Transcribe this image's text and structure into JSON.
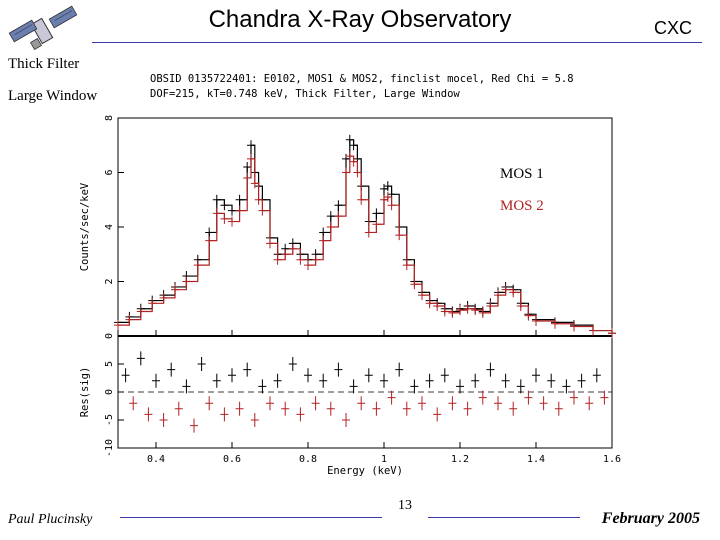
{
  "slide": {
    "title": "Chandra X-Ray Observatory",
    "brand": "CXC",
    "side_labels": [
      "Thick Filter",
      "Large Window"
    ],
    "author": "Paul Plucinsky",
    "page_number": "13",
    "date": "February 2005"
  },
  "colors": {
    "accent_rule": "#3a3aa8",
    "mos1": "#000000",
    "mos2": "#b22222"
  },
  "icons": {
    "logo": "chandra-satellite-icon"
  },
  "chart_data": {
    "type": "line",
    "title_lines": [
      "OBSID 0135722401: E0102, MOS1 & MOS2, finclist mocel, Red Chi = 5.8",
      "DOF=215, kT=0.748 keV, Thick Filter, Large Window"
    ],
    "xlabel": "Energy (keV)",
    "xlim": [
      0.3,
      1.6
    ],
    "x_ticks": [
      "0.4",
      "0.6",
      "0.8",
      "1",
      "1.2",
      "1.4",
      "1.6"
    ],
    "top_panel": {
      "ylabel": "Counts/sec/keV",
      "ylim": [
        0,
        8
      ],
      "y_ticks": [
        "0",
        "2",
        "4",
        "6",
        "8"
      ]
    },
    "bottom_panel": {
      "ylabel": "Res(sig)",
      "ylim": [
        -10,
        10
      ],
      "y_ticks": [
        "-10",
        "-5",
        "0",
        "5"
      ]
    },
    "legend": [
      "MOS 1",
      "MOS 2"
    ],
    "legend_position": "right",
    "series": [
      {
        "name": "MOS 1",
        "x": [
          0.3,
          0.33,
          0.36,
          0.39,
          0.42,
          0.45,
          0.48,
          0.51,
          0.54,
          0.56,
          0.58,
          0.6,
          0.62,
          0.64,
          0.65,
          0.66,
          0.67,
          0.68,
          0.7,
          0.72,
          0.74,
          0.76,
          0.78,
          0.8,
          0.82,
          0.84,
          0.86,
          0.88,
          0.9,
          0.91,
          0.92,
          0.93,
          0.94,
          0.96,
          0.98,
          1.0,
          1.01,
          1.02,
          1.04,
          1.06,
          1.08,
          1.1,
          1.12,
          1.14,
          1.16,
          1.18,
          1.2,
          1.22,
          1.24,
          1.26,
          1.28,
          1.3,
          1.32,
          1.34,
          1.36,
          1.38,
          1.4,
          1.45,
          1.5,
          1.55,
          1.6
        ],
        "values": [
          0.5,
          0.7,
          1.0,
          1.3,
          1.5,
          1.8,
          2.2,
          2.8,
          3.8,
          5.0,
          4.8,
          4.6,
          5.0,
          6.2,
          7.0,
          6.0,
          5.5,
          5.0,
          3.6,
          3.0,
          3.2,
          3.4,
          3.0,
          2.8,
          3.0,
          3.8,
          4.4,
          4.8,
          6.5,
          7.2,
          7.0,
          6.5,
          5.5,
          4.2,
          4.5,
          5.4,
          5.5,
          5.2,
          4.0,
          2.8,
          2.0,
          1.6,
          1.3,
          1.2,
          1.0,
          0.9,
          1.0,
          1.1,
          1.0,
          0.9,
          1.2,
          1.6,
          1.8,
          1.7,
          1.2,
          0.8,
          0.6,
          0.5,
          0.4,
          0.2,
          0.1
        ]
      },
      {
        "name": "MOS 2",
        "x": [
          0.3,
          0.33,
          0.36,
          0.39,
          0.42,
          0.45,
          0.48,
          0.51,
          0.54,
          0.56,
          0.58,
          0.6,
          0.62,
          0.64,
          0.65,
          0.66,
          0.67,
          0.68,
          0.7,
          0.72,
          0.74,
          0.76,
          0.78,
          0.8,
          0.82,
          0.84,
          0.86,
          0.88,
          0.9,
          0.91,
          0.92,
          0.93,
          0.94,
          0.96,
          0.98,
          1.0,
          1.01,
          1.02,
          1.04,
          1.06,
          1.08,
          1.1,
          1.12,
          1.14,
          1.16,
          1.18,
          1.2,
          1.22,
          1.24,
          1.26,
          1.28,
          1.3,
          1.32,
          1.34,
          1.36,
          1.38,
          1.4,
          1.45,
          1.5,
          1.55,
          1.6
        ],
        "values": [
          0.4,
          0.6,
          0.9,
          1.2,
          1.4,
          1.7,
          2.0,
          2.6,
          3.5,
          4.5,
          4.3,
          4.2,
          4.6,
          5.8,
          6.5,
          5.6,
          5.0,
          4.6,
          3.4,
          2.8,
          3.0,
          3.2,
          2.8,
          2.6,
          2.8,
          3.5,
          4.0,
          4.4,
          6.0,
          6.6,
          6.4,
          6.0,
          5.0,
          3.8,
          4.1,
          5.0,
          5.1,
          4.8,
          3.7,
          2.6,
          1.9,
          1.5,
          1.2,
          1.1,
          0.9,
          0.85,
          0.95,
          1.0,
          0.95,
          0.85,
          1.1,
          1.5,
          1.7,
          1.6,
          1.1,
          0.75,
          0.55,
          0.45,
          0.35,
          0.2,
          0.1
        ]
      }
    ],
    "residuals": {
      "MOS 1": {
        "x": [
          0.32,
          0.36,
          0.4,
          0.44,
          0.48,
          0.52,
          0.56,
          0.6,
          0.64,
          0.68,
          0.72,
          0.76,
          0.8,
          0.84,
          0.88,
          0.92,
          0.96,
          1.0,
          1.04,
          1.08,
          1.12,
          1.16,
          1.2,
          1.24,
          1.28,
          1.32,
          1.36,
          1.4,
          1.44,
          1.48,
          1.52,
          1.56
        ],
        "values": [
          3,
          6,
          2,
          4,
          1,
          5,
          2,
          3,
          4,
          1,
          2,
          5,
          3,
          2,
          4,
          1,
          3,
          2,
          4,
          1,
          2,
          3,
          1,
          2,
          4,
          2,
          1,
          3,
          2,
          1,
          2,
          3
        ]
      },
      "MOS 2": {
        "x": [
          0.34,
          0.38,
          0.42,
          0.46,
          0.5,
          0.54,
          0.58,
          0.62,
          0.66,
          0.7,
          0.74,
          0.78,
          0.82,
          0.86,
          0.9,
          0.94,
          0.98,
          1.02,
          1.06,
          1.1,
          1.14,
          1.18,
          1.22,
          1.26,
          1.3,
          1.34,
          1.38,
          1.42,
          1.46,
          1.5,
          1.54,
          1.58
        ],
        "values": [
          -2,
          -4,
          -5,
          -3,
          -6,
          -2,
          -4,
          -3,
          -5,
          -2,
          -3,
          -4,
          -2,
          -3,
          -5,
          -2,
          -3,
          -1,
          -3,
          -2,
          -4,
          -2,
          -3,
          -1,
          -2,
          -3,
          -1,
          -2,
          -3,
          -1,
          -2,
          -1
        ]
      }
    }
  }
}
